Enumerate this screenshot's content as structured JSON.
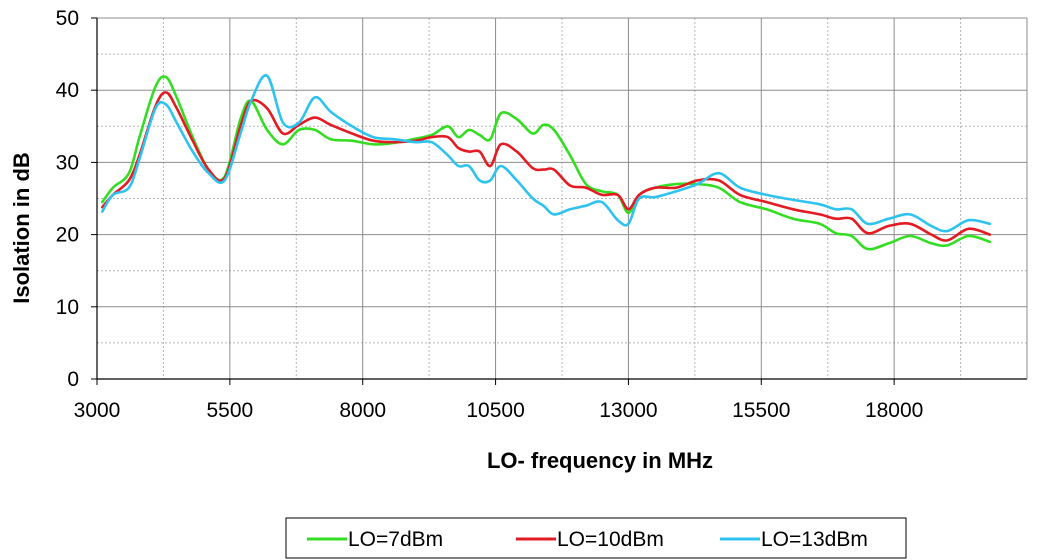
{
  "chart_data": {
    "type": "line",
    "title": "",
    "xlabel": "LO- frequency in MHz",
    "ylabel": "Isolation in dB",
    "xlim": [
      3000,
      20500
    ],
    "ylim": [
      0,
      50
    ],
    "x_ticks": [
      3000,
      5500,
      8000,
      10500,
      13000,
      15500,
      18000
    ],
    "y_ticks": [
      0,
      10,
      20,
      30,
      40,
      50
    ],
    "grid": true,
    "legend": "bottom",
    "series": [
      {
        "name": "LO=7dBm",
        "color": "#33dd22",
        "x": [
          3100,
          3300,
          3600,
          3800,
          4100,
          4300,
          4500,
          4800,
          5100,
          5400,
          5700,
          5900,
          6200,
          6500,
          6800,
          7100,
          7400,
          7800,
          8200,
          8600,
          9000,
          9300,
          9600,
          9800,
          10000,
          10200,
          10400,
          10600,
          10900,
          11200,
          11400,
          11600,
          11900,
          12200,
          12500,
          12800,
          13000,
          13200,
          13500,
          13900,
          14300,
          14700,
          15100,
          15600,
          16100,
          16600,
          16900,
          17200,
          17500,
          17900,
          18300,
          18700,
          19000,
          19400,
          19800
        ],
        "y": [
          24.5,
          26.5,
          28.5,
          33.5,
          40.5,
          41.8,
          39,
          33.5,
          29,
          28,
          36,
          38.5,
          34.5,
          32.5,
          34.5,
          34.5,
          33.2,
          33,
          32.5,
          32.7,
          33.3,
          33.8,
          35,
          33.5,
          34.5,
          33.8,
          33.2,
          36.8,
          36,
          34,
          35.2,
          34.5,
          31,
          27,
          26,
          25.5,
          23,
          25.5,
          26.5,
          27,
          27,
          26.5,
          24.5,
          23.5,
          22.2,
          21.5,
          20.2,
          19.8,
          18,
          18.8,
          19.8,
          18.8,
          18.5,
          19.8,
          19
        ]
      },
      {
        "name": "LO=10dBm",
        "color": "#e31b23",
        "x": [
          3100,
          3300,
          3600,
          3800,
          4100,
          4300,
          4500,
          4800,
          5100,
          5400,
          5700,
          5900,
          6200,
          6500,
          6800,
          7100,
          7400,
          7800,
          8200,
          8600,
          9000,
          9300,
          9600,
          9800,
          10000,
          10200,
          10400,
          10600,
          10900,
          11200,
          11400,
          11600,
          11900,
          12200,
          12500,
          12800,
          13000,
          13200,
          13500,
          13900,
          14300,
          14700,
          15100,
          15600,
          16100,
          16600,
          16900,
          17200,
          17500,
          17900,
          18300,
          18700,
          19000,
          19400,
          19800
        ],
        "y": [
          23.8,
          25.5,
          27.5,
          31,
          37.8,
          39.7,
          37.5,
          33,
          29,
          27.8,
          35,
          38.5,
          37.5,
          34,
          35.2,
          36.2,
          35.2,
          34,
          33,
          32.8,
          33,
          33.5,
          33.5,
          32,
          31.5,
          31.5,
          29.5,
          32.5,
          31.5,
          29.2,
          29,
          29,
          26.8,
          26.5,
          25.5,
          25.5,
          23.5,
          25.5,
          26.5,
          26.5,
          27.5,
          27.5,
          25.5,
          24.5,
          23.5,
          22.8,
          22.2,
          22.2,
          20.2,
          21.2,
          21.5,
          20,
          19.2,
          20.8,
          20
        ]
      },
      {
        "name": "LO=13dBm",
        "color": "#2ec3ee",
        "x": [
          3100,
          3300,
          3600,
          3800,
          4100,
          4300,
          4500,
          4800,
          5100,
          5400,
          5700,
          5900,
          6200,
          6500,
          6800,
          7100,
          7400,
          7800,
          8200,
          8600,
          9000,
          9300,
          9600,
          9800,
          10000,
          10200,
          10400,
          10600,
          10900,
          11200,
          11400,
          11600,
          11900,
          12200,
          12500,
          12800,
          13000,
          13200,
          13500,
          13900,
          14300,
          14700,
          15100,
          15600,
          16100,
          16600,
          16900,
          17200,
          17500,
          17900,
          18300,
          18700,
          19000,
          19400,
          19800
        ],
        "y": [
          23.2,
          25.5,
          26.5,
          30.5,
          37.5,
          38,
          35.5,
          31.5,
          28.5,
          27.5,
          34,
          38.5,
          42,
          35.5,
          35.5,
          39,
          37,
          35,
          33.5,
          33.2,
          32.8,
          32.8,
          31,
          29.5,
          29.5,
          27.5,
          27.5,
          29.5,
          27.5,
          25,
          24,
          22.8,
          23.5,
          24,
          24.5,
          22,
          21.5,
          25,
          25.2,
          26,
          27,
          28.5,
          26.5,
          25.5,
          24.8,
          24.2,
          23.5,
          23.5,
          21.5,
          22.2,
          22.8,
          21.2,
          20.5,
          22,
          21.5
        ]
      }
    ]
  }
}
